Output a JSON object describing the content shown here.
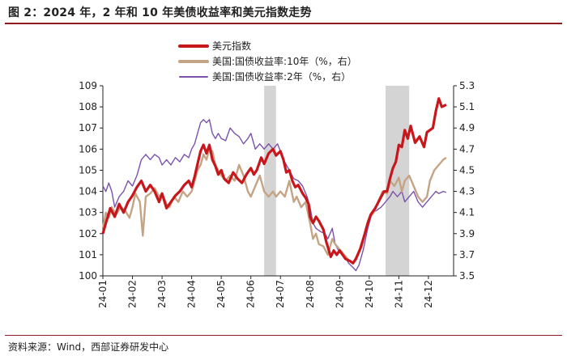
{
  "title": "图 2：2024 年，2 年和 10 年美债收益率和美元指数走势",
  "source": "资料来源：Wind，西部证券研发中心",
  "chart_data": {
    "type": "line",
    "x": [
      "24-01",
      "24-02",
      "24-03",
      "24-04",
      "24-05",
      "24-06",
      "24-07",
      "24-08",
      "24-09",
      "24-10",
      "24-11",
      "24-12"
    ],
    "left_axis": {
      "ylim": [
        100,
        109
      ],
      "ticks": [
        "100",
        "101",
        "102",
        "103",
        "104",
        "105",
        "106",
        "107",
        "108",
        "109"
      ]
    },
    "right_axis": {
      "ylim": [
        3.5,
        5.3
      ],
      "ticks": [
        "3.5",
        "3.7",
        "3.9",
        "4.1",
        "4.3",
        "4.5",
        "4.7",
        "4.9",
        "5.1",
        "5.3"
      ]
    },
    "shaded_periods": [
      {
        "start": 5.45,
        "end": 5.85
      },
      {
        "start": 9.55,
        "end": 10.35
      }
    ],
    "series": [
      {
        "name": "美元指数",
        "axis": "left",
        "color": "#c8161d",
        "points": [
          [
            0.0,
            102.0
          ],
          [
            0.1,
            102.5
          ],
          [
            0.25,
            103.2
          ],
          [
            0.4,
            102.8
          ],
          [
            0.55,
            103.4
          ],
          [
            0.7,
            103.0
          ],
          [
            0.85,
            103.5
          ],
          [
            1.0,
            103.8
          ],
          [
            1.15,
            104.2
          ],
          [
            1.3,
            104.5
          ],
          [
            1.45,
            104.0
          ],
          [
            1.6,
            104.3
          ],
          [
            1.75,
            104.0
          ],
          [
            1.9,
            103.5
          ],
          [
            2.0,
            103.9
          ],
          [
            2.15,
            103.2
          ],
          [
            2.3,
            103.5
          ],
          [
            2.45,
            103.8
          ],
          [
            2.6,
            104.0
          ],
          [
            2.75,
            104.3
          ],
          [
            2.9,
            104.5
          ],
          [
            3.0,
            104.2
          ],
          [
            3.1,
            104.7
          ],
          [
            3.2,
            105.3
          ],
          [
            3.3,
            105.9
          ],
          [
            3.4,
            106.2
          ],
          [
            3.5,
            105.8
          ],
          [
            3.6,
            106.2
          ],
          [
            3.7,
            105.5
          ],
          [
            3.8,
            105.2
          ],
          [
            3.9,
            104.8
          ],
          [
            4.0,
            105.0
          ],
          [
            4.1,
            104.6
          ],
          [
            4.25,
            104.4
          ],
          [
            4.4,
            104.9
          ],
          [
            4.55,
            104.6
          ],
          [
            4.7,
            104.4
          ],
          [
            4.85,
            104.8
          ],
          [
            5.0,
            105.1
          ],
          [
            5.1,
            104.8
          ],
          [
            5.2,
            105.0
          ],
          [
            5.35,
            105.6
          ],
          [
            5.45,
            105.3
          ],
          [
            5.6,
            105.8
          ],
          [
            5.75,
            106.0
          ],
          [
            5.85,
            105.7
          ],
          [
            6.0,
            105.9
          ],
          [
            6.1,
            105.5
          ],
          [
            6.2,
            104.9
          ],
          [
            6.3,
            105.0
          ],
          [
            6.4,
            104.5
          ],
          [
            6.5,
            104.2
          ],
          [
            6.6,
            104.3
          ],
          [
            6.75,
            103.9
          ],
          [
            6.85,
            103.7
          ],
          [
            6.95,
            103.4
          ],
          [
            7.0,
            102.8
          ],
          [
            7.1,
            102.5
          ],
          [
            7.2,
            102.8
          ],
          [
            7.3,
            102.6
          ],
          [
            7.45,
            102.2
          ],
          [
            7.55,
            101.6
          ],
          [
            7.7,
            100.9
          ],
          [
            7.8,
            101.2
          ],
          [
            7.9,
            101.0
          ],
          [
            8.0,
            101.2
          ],
          [
            8.1,
            101.0
          ],
          [
            8.2,
            100.8
          ],
          [
            8.35,
            100.7
          ],
          [
            8.45,
            100.6
          ],
          [
            8.55,
            100.8
          ],
          [
            8.7,
            101.3
          ],
          [
            8.85,
            102.0
          ],
          [
            8.95,
            102.5
          ],
          [
            9.05,
            102.9
          ],
          [
            9.2,
            103.2
          ],
          [
            9.35,
            103.6
          ],
          [
            9.5,
            104.0
          ],
          [
            9.6,
            104.0
          ],
          [
            9.7,
            104.6
          ],
          [
            9.8,
            105.1
          ],
          [
            9.9,
            105.4
          ],
          [
            10.0,
            106.2
          ],
          [
            10.1,
            106.1
          ],
          [
            10.2,
            106.9
          ],
          [
            10.3,
            106.5
          ],
          [
            10.4,
            107.1
          ],
          [
            10.55,
            106.3
          ],
          [
            10.7,
            106.6
          ],
          [
            10.85,
            106.1
          ],
          [
            10.95,
            106.8
          ],
          [
            11.05,
            106.9
          ],
          [
            11.15,
            107.0
          ],
          [
            11.25,
            107.8
          ],
          [
            11.35,
            108.4
          ],
          [
            11.45,
            108.0
          ],
          [
            11.6,
            108.1
          ]
        ]
      },
      {
        "name": "美国:国债收益率:10年（%，右）",
        "axis": "right",
        "color": "#c4a484",
        "points": [
          [
            0.0,
            3.95
          ],
          [
            0.1,
            4.1
          ],
          [
            0.2,
            4.05
          ],
          [
            0.3,
            4.15
          ],
          [
            0.45,
            4.08
          ],
          [
            0.6,
            4.15
          ],
          [
            0.75,
            4.12
          ],
          [
            0.9,
            4.05
          ],
          [
            1.0,
            4.15
          ],
          [
            1.1,
            4.28
          ],
          [
            1.25,
            4.2
          ],
          [
            1.35,
            3.88
          ],
          [
            1.45,
            4.25
          ],
          [
            1.6,
            4.28
          ],
          [
            1.75,
            4.33
          ],
          [
            1.9,
            4.25
          ],
          [
            2.0,
            4.28
          ],
          [
            2.15,
            4.18
          ],
          [
            2.25,
            4.15
          ],
          [
            2.4,
            4.25
          ],
          [
            2.55,
            4.2
          ],
          [
            2.7,
            4.3
          ],
          [
            2.85,
            4.25
          ],
          [
            3.0,
            4.3
          ],
          [
            3.1,
            4.4
          ],
          [
            3.2,
            4.5
          ],
          [
            3.3,
            4.55
          ],
          [
            3.4,
            4.65
          ],
          [
            3.5,
            4.6
          ],
          [
            3.6,
            4.7
          ],
          [
            3.7,
            4.68
          ],
          [
            3.8,
            4.55
          ],
          [
            3.9,
            4.5
          ],
          [
            4.0,
            4.45
          ],
          [
            4.15,
            4.4
          ],
          [
            4.3,
            4.45
          ],
          [
            4.45,
            4.4
          ],
          [
            4.6,
            4.55
          ],
          [
            4.75,
            4.45
          ],
          [
            4.9,
            4.3
          ],
          [
            5.0,
            4.25
          ],
          [
            5.15,
            4.35
          ],
          [
            5.3,
            4.45
          ],
          [
            5.45,
            4.3
          ],
          [
            5.6,
            4.25
          ],
          [
            5.75,
            4.3
          ],
          [
            5.85,
            4.25
          ],
          [
            6.0,
            4.3
          ],
          [
            6.15,
            4.25
          ],
          [
            6.3,
            4.4
          ],
          [
            6.45,
            4.2
          ],
          [
            6.55,
            4.25
          ],
          [
            6.7,
            4.15
          ],
          [
            6.85,
            4.2
          ],
          [
            7.0,
            4.0
          ],
          [
            7.1,
            3.85
          ],
          [
            7.2,
            3.9
          ],
          [
            7.3,
            3.8
          ],
          [
            7.45,
            3.78
          ],
          [
            7.6,
            3.7
          ],
          [
            7.75,
            3.85
          ],
          [
            7.85,
            3.8
          ],
          [
            8.0,
            3.75
          ],
          [
            8.15,
            3.7
          ],
          [
            8.3,
            3.65
          ],
          [
            8.45,
            3.62
          ],
          [
            8.6,
            3.7
          ],
          [
            8.75,
            3.78
          ],
          [
            8.9,
            3.95
          ],
          [
            9.0,
            4.05
          ],
          [
            9.15,
            4.1
          ],
          [
            9.3,
            4.2
          ],
          [
            9.45,
            4.3
          ],
          [
            9.6,
            4.28
          ],
          [
            9.7,
            4.4
          ],
          [
            9.85,
            4.35
          ],
          [
            10.0,
            4.43
          ],
          [
            10.1,
            4.3
          ],
          [
            10.2,
            4.4
          ],
          [
            10.35,
            4.45
          ],
          [
            10.5,
            4.35
          ],
          [
            10.65,
            4.25
          ],
          [
            10.8,
            4.2
          ],
          [
            10.95,
            4.25
          ],
          [
            11.05,
            4.4
          ],
          [
            11.2,
            4.5
          ],
          [
            11.35,
            4.55
          ],
          [
            11.5,
            4.6
          ],
          [
            11.6,
            4.62
          ]
        ]
      },
      {
        "name": "美国:国债收益率:2年（%，右）",
        "axis": "right",
        "color": "#7b52ab",
        "points": [
          [
            0.0,
            4.35
          ],
          [
            0.1,
            4.3
          ],
          [
            0.2,
            4.38
          ],
          [
            0.3,
            4.3
          ],
          [
            0.4,
            4.15
          ],
          [
            0.55,
            4.25
          ],
          [
            0.7,
            4.3
          ],
          [
            0.85,
            4.4
          ],
          [
            1.0,
            4.35
          ],
          [
            1.15,
            4.45
          ],
          [
            1.3,
            4.6
          ],
          [
            1.45,
            4.65
          ],
          [
            1.6,
            4.6
          ],
          [
            1.75,
            4.65
          ],
          [
            1.9,
            4.62
          ],
          [
            2.0,
            4.55
          ],
          [
            2.15,
            4.6
          ],
          [
            2.3,
            4.55
          ],
          [
            2.45,
            4.62
          ],
          [
            2.6,
            4.58
          ],
          [
            2.75,
            4.65
          ],
          [
            2.9,
            4.62
          ],
          [
            3.0,
            4.7
          ],
          [
            3.1,
            4.75
          ],
          [
            3.2,
            4.85
          ],
          [
            3.3,
            4.95
          ],
          [
            3.4,
            4.98
          ],
          [
            3.5,
            4.95
          ],
          [
            3.6,
            4.98
          ],
          [
            3.7,
            4.85
          ],
          [
            3.8,
            4.8
          ],
          [
            3.9,
            4.85
          ],
          [
            4.0,
            4.8
          ],
          [
            4.15,
            4.78
          ],
          [
            4.3,
            4.9
          ],
          [
            4.45,
            4.85
          ],
          [
            4.6,
            4.82
          ],
          [
            4.75,
            4.75
          ],
          [
            4.9,
            4.8
          ],
          [
            5.0,
            4.85
          ],
          [
            5.15,
            4.7
          ],
          [
            5.3,
            4.75
          ],
          [
            5.45,
            4.7
          ],
          [
            5.6,
            4.75
          ],
          [
            5.75,
            4.7
          ],
          [
            5.9,
            4.75
          ],
          [
            6.0,
            4.68
          ],
          [
            6.1,
            4.6
          ],
          [
            6.2,
            4.55
          ],
          [
            6.3,
            4.5
          ],
          [
            6.45,
            4.42
          ],
          [
            6.6,
            4.4
          ],
          [
            6.75,
            4.35
          ],
          [
            6.9,
            4.25
          ],
          [
            7.0,
            4.15
          ],
          [
            7.1,
            4.0
          ],
          [
            7.2,
            3.95
          ],
          [
            7.35,
            3.92
          ],
          [
            7.5,
            3.9
          ],
          [
            7.6,
            3.85
          ],
          [
            7.75,
            3.95
          ],
          [
            7.85,
            3.8
          ],
          [
            8.0,
            3.72
          ],
          [
            8.15,
            3.7
          ],
          [
            8.3,
            3.62
          ],
          [
            8.45,
            3.58
          ],
          [
            8.55,
            3.55
          ],
          [
            8.65,
            3.6
          ],
          [
            8.8,
            3.75
          ],
          [
            8.95,
            3.95
          ],
          [
            9.1,
            4.1
          ],
          [
            9.25,
            4.12
          ],
          [
            9.4,
            4.15
          ],
          [
            9.55,
            4.2
          ],
          [
            9.7,
            4.25
          ],
          [
            9.8,
            4.3
          ],
          [
            9.95,
            4.25
          ],
          [
            10.1,
            4.3
          ],
          [
            10.2,
            4.2
          ],
          [
            10.35,
            4.25
          ],
          [
            10.5,
            4.3
          ],
          [
            10.65,
            4.2
          ],
          [
            10.8,
            4.15
          ],
          [
            10.95,
            4.2
          ],
          [
            11.1,
            4.25
          ],
          [
            11.25,
            4.3
          ],
          [
            11.35,
            4.28
          ],
          [
            11.5,
            4.3
          ],
          [
            11.6,
            4.29
          ]
        ]
      }
    ]
  }
}
